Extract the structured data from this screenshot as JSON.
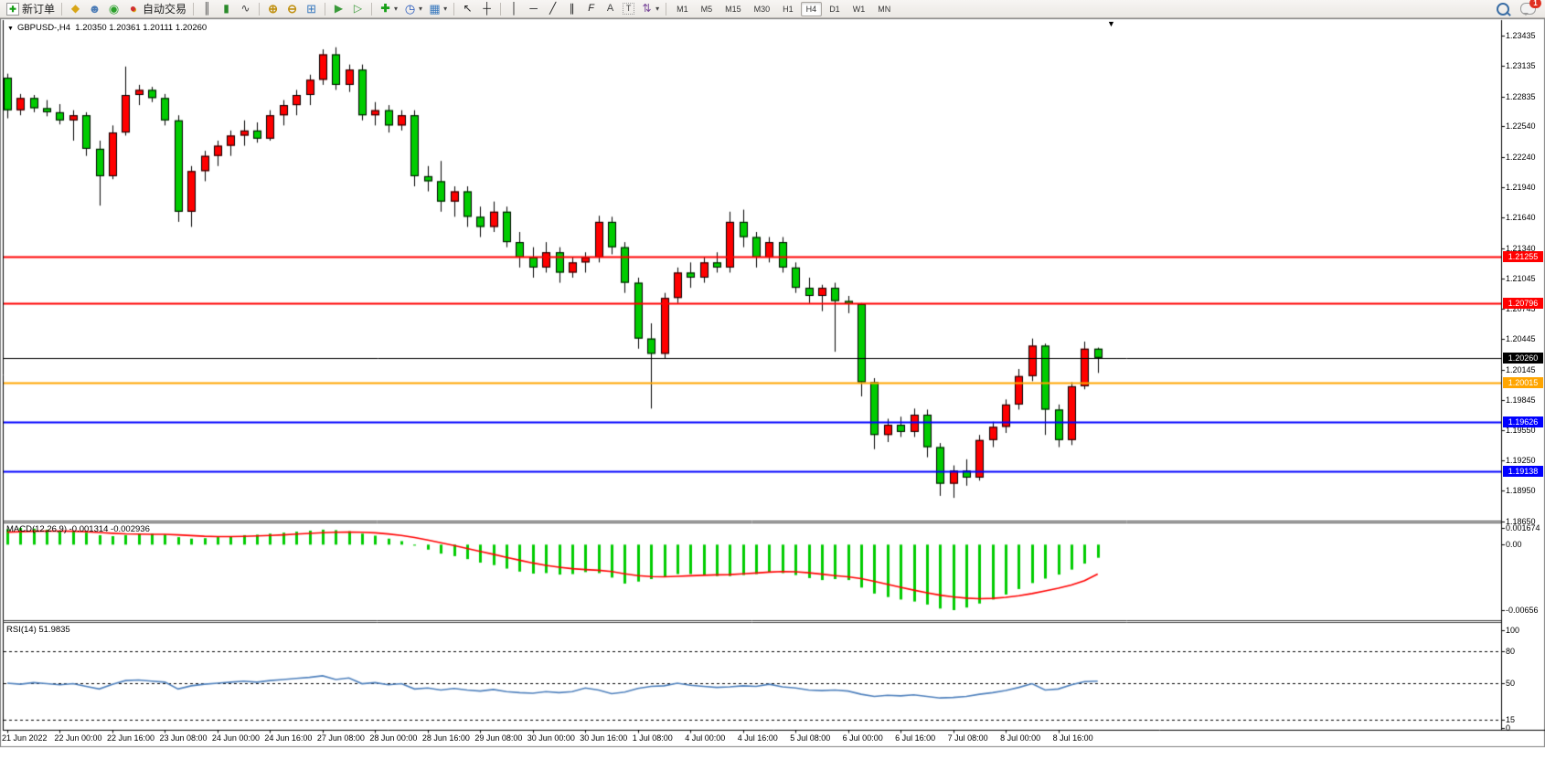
{
  "toolbar": {
    "groups": [
      {
        "name": "order",
        "items": [
          {
            "name": "new-order-button",
            "icon": "new-order-icon",
            "glyph": "✚",
            "label": "新订单"
          }
        ]
      },
      {
        "name": "panels",
        "items": [
          {
            "name": "market-watch-button",
            "icon": "gold-icon",
            "glyph": "◆"
          },
          {
            "name": "navigator-button",
            "icon": "navigator-icon",
            "glyph": "☻"
          },
          {
            "name": "signals-button",
            "icon": "signals-icon",
            "glyph": "◉"
          },
          {
            "name": "auto-trading-button",
            "icon": "auto-trading-icon",
            "glyph": "●",
            "label": "自动交易"
          }
        ]
      },
      {
        "name": "chart-type",
        "items": [
          {
            "name": "bar-chart-button",
            "icon": "bar-chart-icon",
            "glyph": "║"
          },
          {
            "name": "candlestick-chart-button",
            "icon": "candlestick-icon",
            "glyph": "▮"
          },
          {
            "name": "line-chart-button",
            "icon": "line-chart-icon",
            "glyph": "∿"
          }
        ]
      },
      {
        "name": "zoom",
        "items": [
          {
            "name": "zoom-in-button",
            "icon": "zoom-in-icon",
            "glyph": "⊕"
          },
          {
            "name": "zoom-out-button",
            "icon": "zoom-out-icon",
            "glyph": "⊖"
          },
          {
            "name": "tile-windows-button",
            "icon": "tile-windows-icon",
            "glyph": "⊞"
          }
        ]
      },
      {
        "name": "scroll",
        "items": [
          {
            "name": "auto-scroll-button",
            "icon": "auto-scroll-icon",
            "glyph": "▶"
          },
          {
            "name": "chart-shift-button",
            "icon": "chart-shift-icon",
            "glyph": "▷"
          }
        ]
      },
      {
        "name": "add-objects",
        "items": [
          {
            "name": "indicators-button",
            "icon": "indicators-icon",
            "glyph": "✚",
            "dropdown": true
          },
          {
            "name": "periods-button",
            "icon": "clock-icon",
            "glyph": "◷",
            "dropdown": true
          },
          {
            "name": "templates-button",
            "icon": "template-icon",
            "glyph": "▦",
            "dropdown": true
          }
        ]
      },
      {
        "name": "cursor",
        "items": [
          {
            "name": "cursor-button",
            "icon": "cursor-icon",
            "glyph": "↖"
          },
          {
            "name": "crosshair-button",
            "icon": "crosshair-icon",
            "glyph": "┼"
          }
        ]
      },
      {
        "name": "draw",
        "items": [
          {
            "name": "vertical-line-button",
            "icon": "vertical-line-icon",
            "glyph": "│"
          },
          {
            "name": "horizontal-line-button",
            "icon": "horizontal-line-icon",
            "glyph": "─"
          },
          {
            "name": "trendline-button",
            "icon": "trendline-icon",
            "glyph": "╱"
          },
          {
            "name": "channel-button",
            "icon": "channel-icon",
            "glyph": "∥"
          },
          {
            "name": "fibonacci-button",
            "icon": "fibonacci-icon",
            "glyph": "F"
          },
          {
            "name": "text-button",
            "icon": "text-icon",
            "glyph": "A"
          },
          {
            "name": "label-button",
            "icon": "label-icon",
            "glyph": "T"
          },
          {
            "name": "arrows-button",
            "icon": "arrows-icon",
            "glyph": "⇅",
            "dropdown": true
          }
        ]
      }
    ],
    "timeframes": [
      "M1",
      "M5",
      "M15",
      "M30",
      "H1",
      "H4",
      "D1",
      "W1",
      "MN"
    ],
    "active_timeframe": "H4",
    "chat_badge": "1"
  },
  "chart": {
    "title_symbol": "GBPUSD-,H4",
    "title_ohlc": "1.20350 1.20361 1.20111 1.20260",
    "shift_marker": "▼"
  },
  "chart_data": {
    "type": "candlestick",
    "symbol": "GBPUSD-",
    "period": "H4",
    "current_ohlc": {
      "open": "1.20350",
      "high": "1.20361",
      "low": "1.20111",
      "close": "1.20260"
    },
    "colors": {
      "up": "#ff0000",
      "down": "#00cc00",
      "wick": "#000000",
      "macd_hist": "#00cc00",
      "macd_signal": "#ff0000",
      "rsi_line": "#4f81bd",
      "level_red": "#ff0000",
      "level_orange": "#ffa500",
      "level_blue": "#0000ff",
      "current_price": "#000000"
    },
    "price_axis_ticks": [
      "1.23435",
      "1.23135",
      "1.22835",
      "1.22540",
      "1.22240",
      "1.21940",
      "1.21640",
      "1.21340",
      "1.21045",
      "1.20745",
      "1.20445",
      "1.20145",
      "1.19845",
      "1.19550",
      "1.19250",
      "1.18950",
      "1.18650"
    ],
    "levels": [
      {
        "price": 1.21255,
        "label": "1.21255",
        "color": "#ff0000",
        "width": 2
      },
      {
        "price": 1.20796,
        "label": "1.20796",
        "color": "#ff0000",
        "width": 2
      },
      {
        "price": 1.2026,
        "label": "1.20260",
        "color": "#000000",
        "width": 1
      },
      {
        "price": 1.20015,
        "label": "1.20015",
        "color": "#ffa500",
        "width": 2
      },
      {
        "price": 1.19626,
        "label": "1.19626",
        "color": "#0000ff",
        "width": 2
      },
      {
        "price": 1.19138,
        "label": "1.19138",
        "color": "#0000ff",
        "width": 2
      }
    ],
    "time_labels": [
      "21 Jun 2022",
      "22 Jun 00:00",
      "22 Jun 16:00",
      "23 Jun 08:00",
      "24 Jun 00:00",
      "24 Jun 16:00",
      "27 Jun 08:00",
      "28 Jun 00:00",
      "28 Jun 16:00",
      "29 Jun 08:00",
      "30 Jun 00:00",
      "30 Jun 16:00",
      "1 Jul 08:00",
      "4 Jul 00:00",
      "4 Jul 16:00",
      "5 Jul 08:00",
      "6 Jul 00:00",
      "6 Jul 16:00",
      "7 Jul 08:00",
      "8 Jul 00:00",
      "8 Jul 16:00"
    ],
    "candles": [
      [
        1.2302,
        1.2306,
        1.2262,
        1.227
      ],
      [
        1.227,
        1.2286,
        1.2265,
        1.2282
      ],
      [
        1.2282,
        1.2285,
        1.2268,
        1.2272
      ],
      [
        1.2272,
        1.228,
        1.2264,
        1.2268
      ],
      [
        1.2268,
        1.2276,
        1.2256,
        1.226
      ],
      [
        1.226,
        1.227,
        1.224,
        1.2265
      ],
      [
        1.2265,
        1.2268,
        1.2225,
        1.2232
      ],
      [
        1.2232,
        1.224,
        1.2176,
        1.2205
      ],
      [
        1.2205,
        1.2255,
        1.2202,
        1.2248
      ],
      [
        1.2248,
        1.2313,
        1.2245,
        1.2285
      ],
      [
        1.2285,
        1.2295,
        1.2275,
        1.229
      ],
      [
        1.229,
        1.2293,
        1.2278,
        1.2282
      ],
      [
        1.2282,
        1.2286,
        1.2255,
        1.226
      ],
      [
        1.226,
        1.2265,
        1.216,
        1.217
      ],
      [
        1.217,
        1.2215,
        1.2155,
        1.221
      ],
      [
        1.221,
        1.223,
        1.22,
        1.2225
      ],
      [
        1.2225,
        1.224,
        1.2215,
        1.2235
      ],
      [
        1.2235,
        1.225,
        1.2225,
        1.2245
      ],
      [
        1.2245,
        1.226,
        1.2235,
        1.225
      ],
      [
        1.225,
        1.2258,
        1.2238,
        1.2242
      ],
      [
        1.2242,
        1.227,
        1.224,
        1.2265
      ],
      [
        1.2265,
        1.228,
        1.2255,
        1.2275
      ],
      [
        1.2275,
        1.229,
        1.2265,
        1.2285
      ],
      [
        1.2285,
        1.2305,
        1.2275,
        1.23
      ],
      [
        1.23,
        1.233,
        1.2295,
        1.2325
      ],
      [
        1.2325,
        1.2332,
        1.229,
        1.2295
      ],
      [
        1.2295,
        1.2315,
        1.2288,
        1.231
      ],
      [
        1.231,
        1.2315,
        1.226,
        1.2265
      ],
      [
        1.2265,
        1.2278,
        1.2255,
        1.227
      ],
      [
        1.227,
        1.2275,
        1.2248,
        1.2255
      ],
      [
        1.2255,
        1.227,
        1.225,
        1.2265
      ],
      [
        1.2265,
        1.227,
        1.2195,
        1.2205
      ],
      [
        1.2205,
        1.2215,
        1.219,
        1.22
      ],
      [
        1.22,
        1.222,
        1.217,
        1.218
      ],
      [
        1.218,
        1.2195,
        1.2165,
        1.219
      ],
      [
        1.219,
        1.2195,
        1.2155,
        1.2165
      ],
      [
        1.2165,
        1.2175,
        1.2145,
        1.2155
      ],
      [
        1.2155,
        1.218,
        1.215,
        1.217
      ],
      [
        1.217,
        1.2175,
        1.2135,
        1.214
      ],
      [
        1.214,
        1.215,
        1.2115,
        1.2125
      ],
      [
        1.2125,
        1.2135,
        1.2105,
        1.2115
      ],
      [
        1.2115,
        1.214,
        1.211,
        1.213
      ],
      [
        1.213,
        1.2135,
        1.21,
        1.211
      ],
      [
        1.211,
        1.2125,
        1.2105,
        1.212
      ],
      [
        1.212,
        1.213,
        1.211,
        1.2125
      ],
      [
        1.2125,
        1.2166,
        1.212,
        1.216
      ],
      [
        1.216,
        1.2165,
        1.2128,
        1.2135
      ],
      [
        1.2135,
        1.214,
        1.209,
        1.21
      ],
      [
        1.21,
        1.2105,
        1.2035,
        1.2045
      ],
      [
        1.2045,
        1.206,
        1.1976,
        1.203
      ],
      [
        1.203,
        1.209,
        1.2025,
        1.2085
      ],
      [
        1.2085,
        1.2115,
        1.208,
        1.211
      ],
      [
        1.211,
        1.212,
        1.2095,
        1.2105
      ],
      [
        1.2105,
        1.2125,
        1.21,
        1.212
      ],
      [
        1.212,
        1.213,
        1.211,
        1.2115
      ],
      [
        1.2115,
        1.217,
        1.211,
        1.216
      ],
      [
        1.216,
        1.2172,
        1.2135,
        1.2145
      ],
      [
        1.2145,
        1.215,
        1.2115,
        1.2125
      ],
      [
        1.2125,
        1.2145,
        1.212,
        1.214
      ],
      [
        1.214,
        1.2145,
        1.211,
        1.2115
      ],
      [
        1.2115,
        1.212,
        1.209,
        1.2095
      ],
      [
        1.2095,
        1.2105,
        1.208,
        1.2087
      ],
      [
        1.2087,
        1.2098,
        1.2072,
        1.2095
      ],
      [
        1.2095,
        1.21,
        1.2032,
        1.2082
      ],
      [
        1.2082,
        1.2087,
        1.207,
        1.2079
      ],
      [
        1.2079,
        1.208,
        1.1988,
        1.2002
      ],
      [
        1.2002,
        1.2006,
        1.1936,
        1.195
      ],
      [
        1.195,
        1.1966,
        1.1943,
        1.196
      ],
      [
        1.196,
        1.1968,
        1.1948,
        1.1953
      ],
      [
        1.1953,
        1.1976,
        1.1948,
        1.197
      ],
      [
        1.197,
        1.1975,
        1.1928,
        1.1938
      ],
      [
        1.1938,
        1.1942,
        1.189,
        1.1902
      ],
      [
        1.1902,
        1.192,
        1.1888,
        1.1915
      ],
      [
        1.1915,
        1.1926,
        1.19,
        1.1908
      ],
      [
        1.1908,
        1.195,
        1.1905,
        1.1945
      ],
      [
        1.1945,
        1.1963,
        1.1938,
        1.1958
      ],
      [
        1.1958,
        1.1985,
        1.1952,
        1.198
      ],
      [
        1.198,
        1.2015,
        1.1975,
        1.2008
      ],
      [
        1.2008,
        1.2045,
        1.2003,
        1.2038
      ],
      [
        1.2038,
        1.204,
        1.195,
        1.1975
      ],
      [
        1.1975,
        1.198,
        1.1938,
        1.1945
      ],
      [
        1.1945,
        1.2002,
        1.194,
        1.1998
      ],
      [
        1.1998,
        1.2042,
        1.1995,
        1.2035
      ],
      [
        1.2035,
        1.20361,
        1.20111,
        1.2026
      ]
    ],
    "macd": {
      "label_full": "MACD(12,26,9) -0.001314 -0.002936",
      "name": "MACD",
      "params": "(12,26,9)",
      "value_main": "-0.001314",
      "value_signal": "-0.002936",
      "scale_ticks": [
        "0.001674",
        "0.00",
        "-0.00656"
      ],
      "scale_values": [
        0.001674,
        0,
        -0.00656
      ],
      "histogram": [
        0.00155,
        0.001674,
        0.0016,
        0.0015,
        0.0014,
        0.00135,
        0.0012,
        0.00095,
        0.00085,
        0.00095,
        0.00105,
        0.0011,
        0.001,
        0.00075,
        0.0006,
        0.00065,
        0.00075,
        0.00085,
        0.00095,
        0.001,
        0.0011,
        0.0012,
        0.0013,
        0.0014,
        0.0015,
        0.00145,
        0.00135,
        0.0011,
        0.0009,
        0.0006,
        0.00035,
        -0.0001,
        -0.0005,
        -0.0009,
        -0.00115,
        -0.00145,
        -0.0018,
        -0.00205,
        -0.0024,
        -0.0027,
        -0.0029,
        -0.00285,
        -0.003,
        -0.00295,
        -0.00275,
        -0.00285,
        -0.0033,
        -0.0039,
        -0.0037,
        -0.00345,
        -0.00325,
        -0.00295,
        -0.00295,
        -0.00305,
        -0.00315,
        -0.00315,
        -0.00305,
        -0.00295,
        -0.00275,
        -0.00285,
        -0.00305,
        -0.00335,
        -0.00355,
        -0.00345,
        -0.00355,
        -0.0043,
        -0.0049,
        -0.00525,
        -0.0055,
        -0.0057,
        -0.006,
        -0.0064,
        -0.00656,
        -0.0063,
        -0.0059,
        -0.0055,
        -0.005,
        -0.00445,
        -0.00385,
        -0.0034,
        -0.003,
        -0.0025,
        -0.0019,
        -0.001314
      ],
      "signal": [
        0.00125,
        0.0013,
        0.00134,
        0.00136,
        0.00136,
        0.00134,
        0.0013,
        0.00122,
        0.00114,
        0.00108,
        0.00105,
        0.00104,
        0.00103,
        0.00098,
        0.00091,
        0.00084,
        0.0008,
        0.0008,
        0.00083,
        0.00087,
        0.00092,
        0.00098,
        0.00105,
        0.00112,
        0.00119,
        0.00124,
        0.00126,
        0.00124,
        0.00118,
        0.00107,
        0.00092,
        0.00071,
        0.00046,
        0.00019,
        -9e-05,
        -0.00038,
        -0.00068,
        -0.00097,
        -0.00127,
        -0.00156,
        -0.00184,
        -0.00207,
        -0.00226,
        -0.00241,
        -0.0025,
        -0.00257,
        -0.0027,
        -0.00292,
        -0.0031,
        -0.0032,
        -0.00322,
        -0.00318,
        -0.00312,
        -0.00307,
        -0.00303,
        -0.003,
        -0.00293,
        -0.00284,
        -0.00275,
        -0.0027,
        -0.00272,
        -0.00282,
        -0.00296,
        -0.0031,
        -0.00322,
        -0.0034,
        -0.00368,
        -0.00398,
        -0.00428,
        -0.00456,
        -0.00482,
        -0.00506,
        -0.00524,
        -0.00536,
        -0.00541,
        -0.00538,
        -0.00528,
        -0.00512,
        -0.0049,
        -0.00464,
        -0.00436,
        -0.00404,
        -0.0036,
        -0.00294
      ]
    },
    "rsi": {
      "label_full": "RSI(14) 51.9835",
      "name": "RSI",
      "params": "(14)",
      "value": "51.9835",
      "scale_ticks": [
        "100",
        "80",
        "50",
        "15",
        "0"
      ],
      "scale_values": [
        100,
        80,
        50,
        15,
        0
      ],
      "dashed_levels": [
        80,
        50,
        15
      ],
      "values": [
        50.0,
        49.0,
        50.5,
        49.5,
        48.5,
        49.5,
        47.0,
        44.5,
        49.0,
        52.5,
        53.0,
        52.0,
        51.0,
        44.5,
        47.5,
        49.0,
        50.0,
        51.0,
        52.0,
        51.0,
        52.5,
        53.5,
        54.5,
        55.5,
        57.0,
        53.5,
        55.0,
        49.5,
        50.5,
        48.5,
        49.5,
        44.5,
        45.5,
        43.5,
        45.0,
        43.5,
        42.5,
        44.0,
        42.0,
        41.0,
        40.5,
        42.0,
        41.0,
        42.0,
        45.5,
        43.5,
        40.0,
        41.5,
        45.0,
        47.0,
        47.5,
        50.0,
        48.0,
        47.0,
        46.0,
        46.5,
        47.5,
        47.0,
        49.0,
        46.5,
        45.5,
        43.5,
        43.0,
        43.5,
        42.5,
        39.5,
        37.5,
        38.5,
        38.0,
        39.0,
        37.5,
        36.0,
        36.5,
        37.5,
        39.5,
        41.0,
        43.0,
        46.0,
        49.5,
        43.5,
        44.5,
        48.5,
        51.5,
        51.9835
      ]
    }
  }
}
